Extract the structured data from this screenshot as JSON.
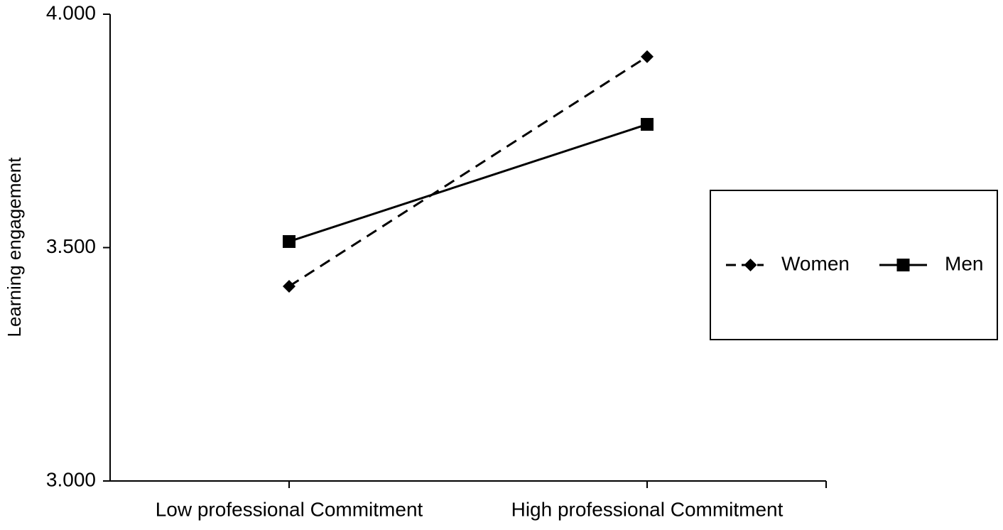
{
  "chart_data": {
    "type": "line",
    "y_label": "Learning engagement",
    "categories": [
      "Low professional Commitment",
      "High professional Commitment"
    ],
    "series": [
      {
        "name": "Women",
        "color": "#000000",
        "line_style": "dashed",
        "marker": "diamond",
        "values": [
          3.417,
          3.909
        ]
      },
      {
        "name": "Men",
        "color": "#000000",
        "line_style": "solid",
        "marker": "square",
        "values": [
          3.513,
          3.764
        ]
      }
    ],
    "ylim": [
      3,
      4
    ],
    "yticks": [
      {
        "value": 3,
        "label": "3.000"
      },
      {
        "value": 3.5,
        "label": "3.500"
      },
      {
        "value": 4,
        "label": "4.000"
      }
    ],
    "grid": false,
    "legend": "right"
  }
}
